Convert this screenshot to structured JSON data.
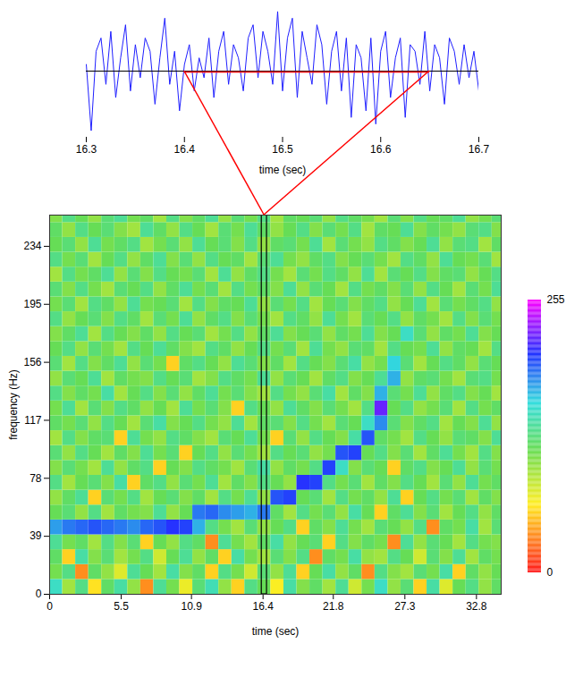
{
  "chart_data": [
    {
      "type": "line",
      "x_label": "time (sec)",
      "x": [
        16.3,
        16.305,
        16.31,
        16.315,
        16.32,
        16.325,
        16.33,
        16.335,
        16.34,
        16.345,
        16.35,
        16.355,
        16.36,
        16.365,
        16.37,
        16.375,
        16.38,
        16.385,
        16.39,
        16.395,
        16.4,
        16.405,
        16.41,
        16.415,
        16.42,
        16.425,
        16.43,
        16.435,
        16.44,
        16.445,
        16.45,
        16.455,
        16.46,
        16.465,
        16.47,
        16.475,
        16.48,
        16.485,
        16.49,
        16.495,
        16.5,
        16.505,
        16.51,
        16.515,
        16.52,
        16.525,
        16.53,
        16.535,
        16.54,
        16.545,
        16.55,
        16.555,
        16.56,
        16.565,
        16.57,
        16.575,
        16.58,
        16.585,
        16.59,
        16.595,
        16.6,
        16.605,
        16.61,
        16.615,
        16.62,
        16.625,
        16.63,
        16.635,
        16.64,
        16.645,
        16.65,
        16.655,
        16.66,
        16.665,
        16.67,
        16.675,
        16.68,
        16.685,
        16.69,
        16.695,
        16.7
      ],
      "values": [
        0.1,
        -0.9,
        0.3,
        0.5,
        -0.2,
        0.6,
        -0.4,
        0.2,
        0.7,
        -0.3,
        0.4,
        -0.1,
        0.5,
        0.3,
        -0.5,
        0.2,
        0.8,
        -0.2,
        0.3,
        -0.6,
        0.1,
        0.4,
        -0.3,
        0.2,
        -0.1,
        0.5,
        -0.4,
        0.3,
        0.6,
        -0.2,
        0.4,
        0.2,
        -0.3,
        0.5,
        0.7,
        -0.1,
        0.6,
        0.3,
        -0.2,
        0.9,
        -0.3,
        0.5,
        0.8,
        -0.4,
        0.6,
        0.2,
        -0.2,
        0.7,
        0.4,
        -0.5,
        0.3,
        0.6,
        -0.3,
        0.5,
        -0.7,
        0.4,
        0.2,
        -0.6,
        0.5,
        -0.8,
        0.3,
        0.6,
        -0.4,
        0.2,
        0.5,
        -0.7,
        0.4,
        0.3,
        -0.2,
        0.6,
        -0.3,
        0.4,
        0.2,
        -0.5,
        0.5,
        0.3,
        -0.2,
        0.4,
        -0.1,
        0.3,
        -0.3
      ],
      "color": "#1f1fff",
      "xlim": [
        16.3,
        16.7
      ],
      "xticks": [
        16.3,
        16.4,
        16.5,
        16.6,
        16.7
      ],
      "ylim": [
        -1,
        1
      ],
      "tick_labels": "x",
      "baseline": 0,
      "highlight": [
        16.4,
        16.65
      ]
    },
    {
      "type": "heatmap",
      "x_label": "time (sec)",
      "y_label": "frequency (Hz)",
      "x_bins": [
        0,
        1,
        2,
        3,
        4,
        5,
        6,
        7,
        8,
        9,
        10,
        11,
        12,
        13,
        14,
        15,
        16,
        17,
        18,
        19,
        20,
        21,
        22,
        23,
        24,
        25,
        26,
        27,
        28,
        29,
        30,
        31,
        32,
        33,
        34,
        35
      ],
      "y_bins": [
        0,
        10,
        20,
        30,
        40,
        50,
        60,
        70,
        80,
        90,
        100,
        110,
        120,
        130,
        140,
        150,
        160,
        170,
        180,
        190,
        200,
        210,
        220,
        230,
        240,
        250,
        260
      ],
      "cells": [
        [
          150,
          95,
          130,
          60,
          120,
          140,
          100,
          35,
          135,
          110,
          70,
          125,
          145,
          100,
          55,
          130,
          115,
          65,
          140,
          105,
          120,
          95,
          135,
          80,
          110,
          150,
          100,
          125,
          55,
          140,
          75,
          115,
          130,
          100,
          120
        ],
        [
          110,
          130,
          35,
          120,
          100,
          75,
          135,
          115,
          95,
          140,
          105,
          120,
          55,
          130,
          110,
          80,
          125,
          100,
          135,
          55,
          115,
          140,
          100,
          120,
          35,
          130,
          105,
          95,
          125,
          110,
          140,
          55,
          120,
          100,
          115
        ],
        [
          120,
          55,
          140,
          105,
          125,
          95,
          110,
          130,
          80,
          115,
          135,
          100,
          120,
          55,
          140,
          110,
          95,
          125,
          105,
          130,
          35,
          120,
          110,
          140,
          100,
          95,
          130,
          115,
          80,
          125,
          105,
          135,
          95,
          120,
          110
        ],
        [
          135,
          110,
          120,
          95,
          130,
          105,
          125,
          55,
          115,
          100,
          130,
          120,
          35,
          135,
          110,
          95,
          120,
          140,
          100,
          115,
          125,
          55,
          130,
          105,
          120,
          110,
          35,
          135,
          100,
          125,
          115,
          95,
          130,
          110,
          105
        ],
        [
          175,
          185,
          190,
          195,
          190,
          185,
          180,
          190,
          195,
          205,
          200,
          170,
          130,
          110,
          95,
          125,
          100,
          115,
          130,
          55,
          120,
          105,
          135,
          110,
          95,
          125,
          115,
          100,
          130,
          35,
          120,
          110,
          140,
          95,
          125
        ],
        [
          115,
          125,
          100,
          130,
          95,
          120,
          110,
          105,
          135,
          100,
          115,
          185,
          190,
          180,
          175,
          170,
          185,
          120,
          95,
          130,
          110,
          125,
          100,
          140,
          115,
          55,
          120,
          135,
          105,
          125,
          95,
          115,
          130,
          100,
          120
        ],
        [
          100,
          120,
          135,
          55,
          125,
          110,
          130,
          95,
          115,
          125,
          105,
          120,
          95,
          130,
          110,
          135,
          100,
          195,
          200,
          115,
          125,
          95,
          130,
          110,
          120,
          100,
          135,
          55,
          115,
          130,
          110,
          125,
          95,
          120,
          105
        ],
        [
          130,
          95,
          115,
          125,
          105,
          140,
          55,
          120,
          130,
          100,
          125,
          110,
          135,
          95,
          120,
          105,
          130,
          115,
          100,
          205,
          200,
          130,
          110,
          125,
          95,
          120,
          105,
          130,
          115,
          95,
          125,
          100,
          135,
          110,
          120
        ],
        [
          105,
          125,
          110,
          95,
          135,
          100,
          120,
          130,
          55,
          115,
          105,
          130,
          120,
          110,
          95,
          125,
          140,
          100,
          120,
          110,
          130,
          200,
          150,
          105,
          125,
          115,
          55,
          120,
          130,
          105,
          115,
          135,
          100,
          125,
          110
        ],
        [
          125,
          100,
          130,
          115,
          95,
          120,
          105,
          135,
          110,
          125,
          55,
          115,
          130,
          100,
          125,
          110,
          95,
          130,
          115,
          125,
          100,
          110,
          195,
          200,
          115,
          130,
          105,
          125,
          95,
          120,
          135,
          110,
          95,
          130,
          105
        ],
        [
          95,
          130,
          105,
          120,
          125,
          55,
          135,
          110,
          100,
          130,
          120,
          105,
          95,
          125,
          115,
          135,
          110,
          55,
          125,
          100,
          130,
          115,
          105,
          140,
          195,
          120,
          110,
          95,
          130,
          115,
          100,
          125,
          120,
          105,
          135
        ],
        [
          120,
          110,
          125,
          100,
          130,
          115,
          95,
          125,
          140,
          105,
          115,
          130,
          110,
          100,
          135,
          95,
          120,
          125,
          105,
          130,
          110,
          95,
          125,
          115,
          150,
          180,
          125,
          105,
          120,
          130,
          95,
          115,
          105,
          135,
          100
        ],
        [
          110,
          135,
          95,
          125,
          105,
          130,
          120,
          100,
          115,
          95,
          135,
          110,
          125,
          105,
          55,
          130,
          115,
          100,
          135,
          120,
          105,
          125,
          110,
          95,
          130,
          220,
          115,
          130,
          100,
          110,
          125,
          95,
          130,
          110,
          120
        ],
        [
          130,
          105,
          120,
          110,
          140,
          95,
          115,
          130,
          105,
          125,
          100,
          120,
          135,
          110,
          125,
          105,
          95,
          130,
          110,
          100,
          125,
          140,
          95,
          120,
          105,
          170,
          125,
          110,
          135,
          100,
          120,
          130,
          105,
          115,
          95
        ],
        [
          100,
          125,
          115,
          135,
          95,
          120,
          110,
          105,
          130,
          115,
          125,
          95,
          105,
          130,
          120,
          110,
          135,
          100,
          125,
          115,
          95,
          120,
          130,
          105,
          115,
          135,
          170,
          100,
          120,
          125,
          110,
          95,
          125,
          130,
          110
        ],
        [
          125,
          95,
          130,
          105,
          120,
          135,
          100,
          125,
          110,
          55,
          120,
          130,
          115,
          100,
          135,
          125,
          105,
          120,
          95,
          130,
          115,
          105,
          125,
          140,
          100,
          110,
          160,
          125,
          95,
          115,
          130,
          120,
          100,
          125,
          115
        ],
        [
          115,
          130,
          100,
          125,
          110,
          95,
          130,
          115,
          135,
          120,
          105,
          95,
          130,
          120,
          100,
          115,
          130,
          110,
          125,
          95,
          135,
          110,
          100,
          125,
          120,
          95,
          130,
          115,
          110,
          135,
          100,
          120,
          115,
          95,
          130
        ],
        [
          105,
          120,
          135,
          95,
          130,
          115,
          105,
          120,
          100,
          130,
          115,
          125,
          95,
          110,
          130,
          100,
          120,
          135,
          105,
          115,
          125,
          100,
          120,
          110,
          135,
          105,
          115,
          150,
          125,
          100,
          120,
          110,
          135,
          105,
          115
        ],
        [
          130,
          100,
          115,
          125,
          105,
          130,
          120,
          95,
          125,
          110,
          135,
          100,
          120,
          130,
          105,
          125,
          110,
          95,
          130,
          120,
          100,
          135,
          110,
          95,
          125,
          115,
          130,
          100,
          120,
          110,
          95,
          130,
          105,
          125,
          110
        ],
        [
          110,
          125,
          95,
          130,
          120,
          100,
          135,
          110,
          115,
          125,
          95,
          130,
          105,
          120,
          115,
          135,
          100,
          125,
          110,
          130,
          95,
          115,
          125,
          105,
          120,
          130,
          100,
          115,
          135,
          95,
          125,
          110,
          120,
          130,
          100
        ],
        [
          125,
          105,
          130,
          110,
          95,
          125,
          115,
          130,
          100,
          120,
          135,
          110,
          125,
          95,
          130,
          110,
          120,
          105,
          135,
          100,
          125,
          115,
          95,
          130,
          110,
          120,
          105,
          125,
          100,
          130,
          115,
          95,
          125,
          110,
          135
        ],
        [
          95,
          130,
          110,
          120,
          135,
          100,
          125,
          105,
          130,
          115,
          110,
          125,
          95,
          135,
          100,
          120,
          130,
          110,
          95,
          125,
          110,
          130,
          120,
          100,
          135,
          95,
          125,
          115,
          130,
          105,
          120,
          125,
          100,
          115,
          130
        ],
        [
          130,
          110,
          125,
          95,
          115,
          130,
          100,
          120,
          135,
          105,
          125,
          100,
          130,
          115,
          120,
          95,
          125,
          135,
          110,
          100,
          120,
          130,
          105,
          115,
          125,
          110,
          95,
          130,
          120,
          100,
          135,
          115,
          110,
          125,
          95
        ],
        [
          115,
          125,
          100,
          135,
          110,
          120,
          130,
          95,
          110,
          125,
          100,
          135,
          115,
          125,
          105,
          130,
          100,
          120,
          125,
          110,
          135,
          95,
          125,
          110,
          100,
          130,
          120,
          105,
          115,
          135,
          100,
          125,
          130,
          95,
          120
        ],
        [
          120,
          100,
          130,
          115,
          125,
          105,
          95,
          135,
          120,
          100,
          130,
          115,
          95,
          125,
          110,
          135,
          120,
          100,
          115,
          130,
          105,
          125,
          110,
          130,
          95,
          120,
          115,
          135,
          105,
          120,
          110,
          100,
          125,
          130,
          105
        ],
        [
          105,
          130,
          115,
          100,
          125,
          135,
          110,
          120,
          95,
          130,
          105,
          120,
          135,
          100,
          125,
          110,
          130,
          95,
          120,
          115,
          125,
          100,
          130,
          120,
          110,
          95,
          125,
          105,
          130,
          115,
          120,
          135,
          100,
          110,
          125
        ]
      ],
      "xlim": [
        0,
        34.7
      ],
      "ylim": [
        0,
        255
      ],
      "xticks": [
        0,
        5.5,
        10.9,
        16.4,
        21.8,
        27.3,
        32.8
      ],
      "yticks": [
        0,
        39,
        78,
        117,
        156,
        195,
        234
      ],
      "colorbar": {
        "range": [
          0,
          255
        ],
        "ticks": [
          0,
          255
        ]
      },
      "window": [
        16.3,
        16.7
      ]
    }
  ]
}
